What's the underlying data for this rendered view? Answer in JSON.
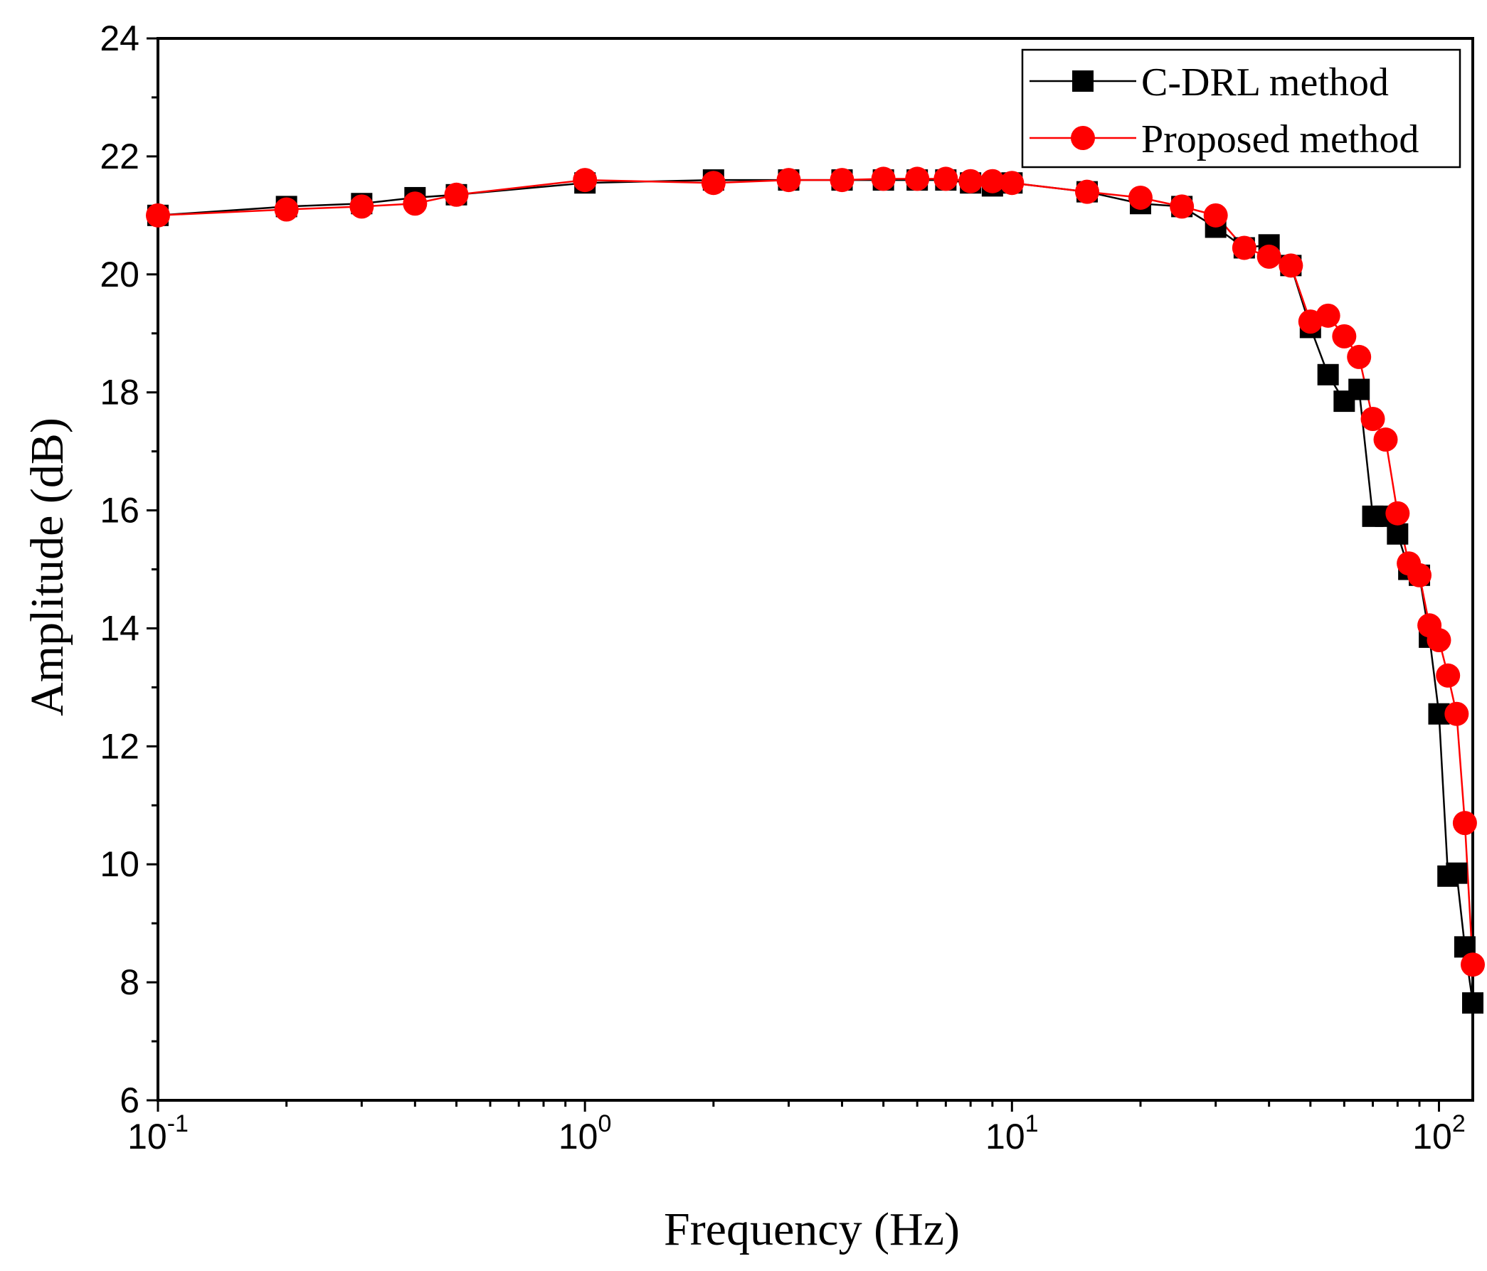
{
  "chart_data": {
    "type": "line",
    "xscale": "log",
    "xlabel": "Frequency (Hz)",
    "ylabel": "Amplitude (dB)",
    "xlim": [
      0.1,
      120
    ],
    "ylim": [
      6,
      24
    ],
    "x_ticks": [
      {
        "base": "10",
        "exp": "-1",
        "value": 0.1
      },
      {
        "base": "10",
        "exp": "0",
        "value": 1
      },
      {
        "base": "10",
        "exp": "1",
        "value": 10
      },
      {
        "base": "10",
        "exp": "2",
        "value": 100
      }
    ],
    "y_ticks": [
      "6",
      "8",
      "10",
      "12",
      "14",
      "16",
      "18",
      "20",
      "22",
      "24"
    ],
    "legend_position": "top-right",
    "series": [
      {
        "name": "C-DRL method",
        "color": "#000000",
        "marker": "square",
        "x": [
          0.1,
          0.2,
          0.3,
          0.4,
          0.5,
          1,
          2,
          3,
          4,
          5,
          6,
          7,
          8,
          9,
          10,
          15,
          20,
          25,
          30,
          35,
          40,
          45,
          50,
          55,
          60,
          65,
          70,
          75,
          80,
          85,
          90,
          95,
          100,
          105,
          110,
          115,
          120
        ],
        "values": [
          21.0,
          21.15,
          21.2,
          21.3,
          21.35,
          21.55,
          21.6,
          21.6,
          21.6,
          21.6,
          21.6,
          21.6,
          21.55,
          21.5,
          21.55,
          21.4,
          21.2,
          21.15,
          20.8,
          20.45,
          20.5,
          20.15,
          19.1,
          18.3,
          17.85,
          18.05,
          15.9,
          15.9,
          15.6,
          15.0,
          14.9,
          13.85,
          12.55,
          9.8,
          9.85,
          8.6,
          7.65
        ]
      },
      {
        "name": "Proposed method",
        "color": "#ff0000",
        "marker": "circle",
        "x": [
          0.1,
          0.2,
          0.3,
          0.4,
          0.5,
          1,
          2,
          3,
          4,
          5,
          6,
          7,
          8,
          9,
          10,
          15,
          20,
          25,
          30,
          35,
          40,
          45,
          50,
          55,
          60,
          65,
          70,
          75,
          80,
          85,
          90,
          95,
          100,
          105,
          110,
          115,
          120
        ],
        "values": [
          21.0,
          21.1,
          21.15,
          21.2,
          21.35,
          21.6,
          21.55,
          21.6,
          21.6,
          21.62,
          21.62,
          21.62,
          21.58,
          21.58,
          21.55,
          21.4,
          21.3,
          21.15,
          21.0,
          20.45,
          20.3,
          20.15,
          19.2,
          19.3,
          18.95,
          18.6,
          17.55,
          17.2,
          15.95,
          15.1,
          14.9,
          14.05,
          13.8,
          13.2,
          12.55,
          10.7,
          8.3
        ]
      }
    ]
  }
}
